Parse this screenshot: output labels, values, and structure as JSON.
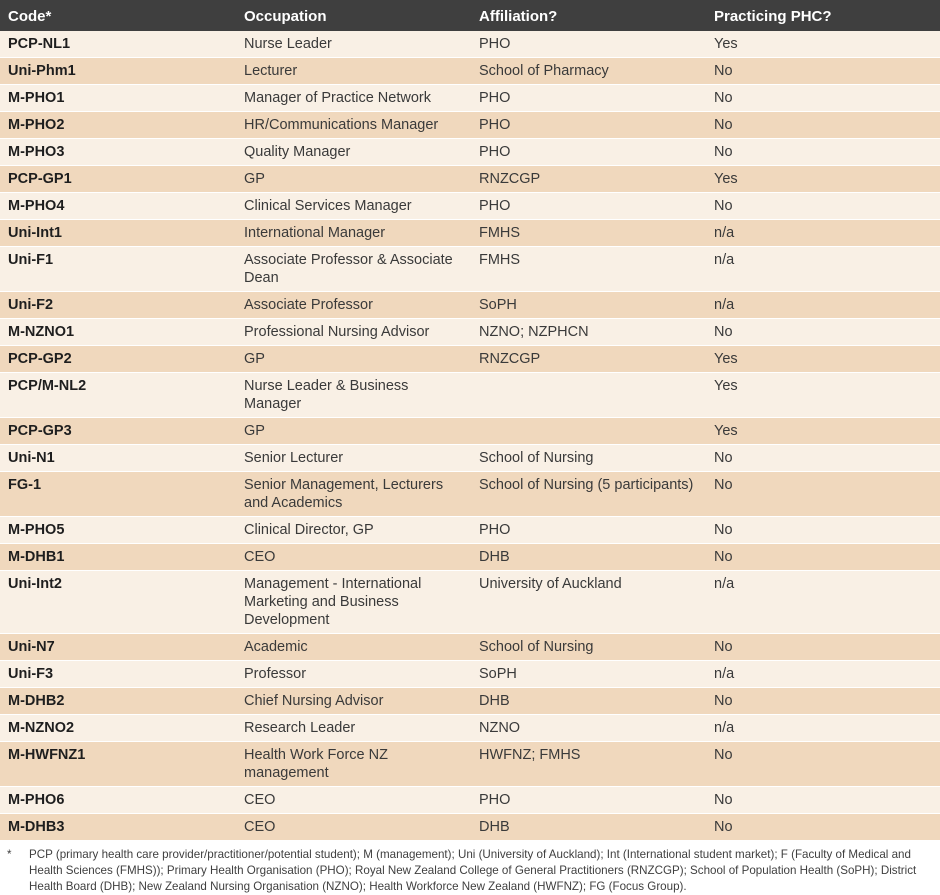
{
  "table": {
    "headers": [
      "Code*",
      "Occupation",
      "Affiliation?",
      "Practicing PHC?"
    ],
    "rows": [
      [
        "PCP-NL1",
        "Nurse Leader",
        "PHO",
        "Yes"
      ],
      [
        "Uni-Phm1",
        "Lecturer",
        "School of Pharmacy",
        "No"
      ],
      [
        "M-PHO1",
        "Manager of Practice Network",
        "PHO",
        "No"
      ],
      [
        "M-PHO2",
        "HR/Communications Manager",
        "PHO",
        "No"
      ],
      [
        "M-PHO3",
        "Quality Manager",
        "PHO",
        "No"
      ],
      [
        "PCP-GP1",
        "GP",
        "RNZCGP",
        "Yes"
      ],
      [
        "M-PHO4",
        "Clinical Services Manager",
        "PHO",
        "No"
      ],
      [
        "Uni-Int1",
        "International Manager",
        "FMHS",
        "n/a"
      ],
      [
        "Uni-F1",
        "Associate Professor & Associate Dean",
        "FMHS",
        "n/a"
      ],
      [
        "Uni-F2",
        "Associate Professor",
        "SoPH",
        "n/a"
      ],
      [
        "M-NZNO1",
        "Professional Nursing Advisor",
        "NZNO; NZPHCN",
        "No"
      ],
      [
        "PCP-GP2",
        "GP",
        "RNZCGP",
        "Yes"
      ],
      [
        "PCP/M-NL2",
        "Nurse Leader & Business Manager",
        "",
        "Yes"
      ],
      [
        "PCP-GP3",
        "GP",
        "",
        "Yes"
      ],
      [
        "Uni-N1",
        "Senior Lecturer",
        "School of Nursing",
        "No"
      ],
      [
        "FG-1",
        "Senior Management, Lecturers and Academics",
        "School of Nursing (5 participants)",
        "No"
      ],
      [
        "M-PHO5",
        "Clinical Director, GP",
        "PHO",
        "No"
      ],
      [
        "M-DHB1",
        "CEO",
        "DHB",
        "No"
      ],
      [
        "Uni-Int2",
        "Management - International Marketing and Business Development",
        "University of Auckland",
        "n/a"
      ],
      [
        "Uni-N7",
        "Academic",
        "School of Nursing",
        "No"
      ],
      [
        "Uni-F3",
        "Professor",
        "SoPH",
        "n/a"
      ],
      [
        "M-DHB2",
        "Chief Nursing Advisor",
        "DHB",
        "No"
      ],
      [
        "M-NZNO2",
        "Research Leader",
        "NZNO",
        "n/a"
      ],
      [
        "M-HWFNZ1",
        "Health Work Force NZ management",
        "HWFNZ; FMHS",
        "No"
      ],
      [
        "M-PHO6",
        "CEO",
        "PHO",
        "No"
      ],
      [
        "M-DHB3",
        "CEO",
        "DHB",
        "No"
      ]
    ]
  },
  "footnote": {
    "marker": "*",
    "text": "PCP (primary health care provider/practitioner/potential student); M (management); Uni (University of Auckland); Int (International student market); F (Faculty of Medical and Health Sciences (FMHS)); Primary Health Organisation (PHO); Royal New Zealand College of General Practitioners (RNZCGP); School of Population Health (SoPH); District Health Board (DHB); New Zealand Nursing Organisation (NZNO); Health Workforce New Zealand (HWFNZ); FG (Focus Group)."
  },
  "colors": {
    "header_bg": "#3f3f3f",
    "row_light": "#f9f0e5",
    "row_dark": "#f0d8bd"
  }
}
